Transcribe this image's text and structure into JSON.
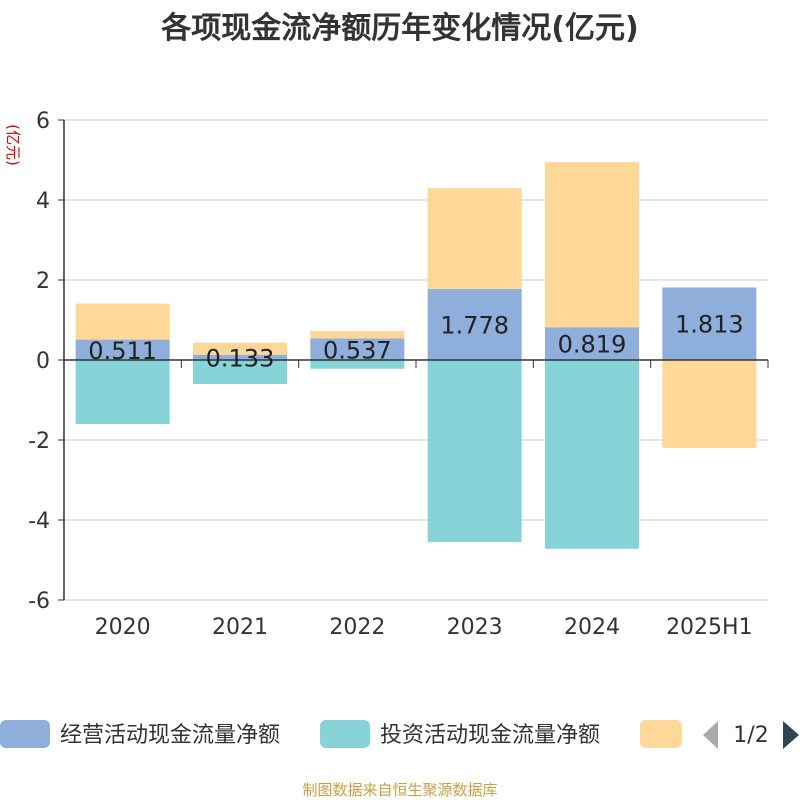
{
  "chart_data": {
    "type": "bar",
    "stacked": true,
    "title": "各项现金流净额历年变化情况(亿元)",
    "ylabel": "(亿元)",
    "xlabel": "",
    "categories": [
      "2020",
      "2021",
      "2022",
      "2023",
      "2024",
      "2025H1"
    ],
    "ylim": [
      -6,
      6
    ],
    "yticks": [
      6,
      4,
      2,
      0,
      -2,
      -4,
      -6
    ],
    "grid": true,
    "legend_position": "bottom",
    "series": [
      {
        "name": "经营活动现金流量净额",
        "color": "#8eaedc",
        "values": [
          0.511,
          0.133,
          0.537,
          1.778,
          0.819,
          1.813
        ],
        "labels": [
          "0.511",
          "0.133",
          "0.537",
          "1.778",
          "0.819",
          "1.813"
        ]
      },
      {
        "name": "投资活动现金流量净额",
        "color": "#87d4d8",
        "values": [
          -1.6,
          -0.6,
          -0.22,
          -4.55,
          -4.72,
          0.0
        ]
      },
      {
        "name": "",
        "color": "#ffd898",
        "values": [
          0.9,
          0.3,
          0.19,
          2.52,
          4.13,
          -2.2
        ]
      }
    ]
  },
  "legend": {
    "page_indicator": "1/2"
  },
  "footer": {
    "source": "制图数据来自恒生聚源数据库"
  }
}
